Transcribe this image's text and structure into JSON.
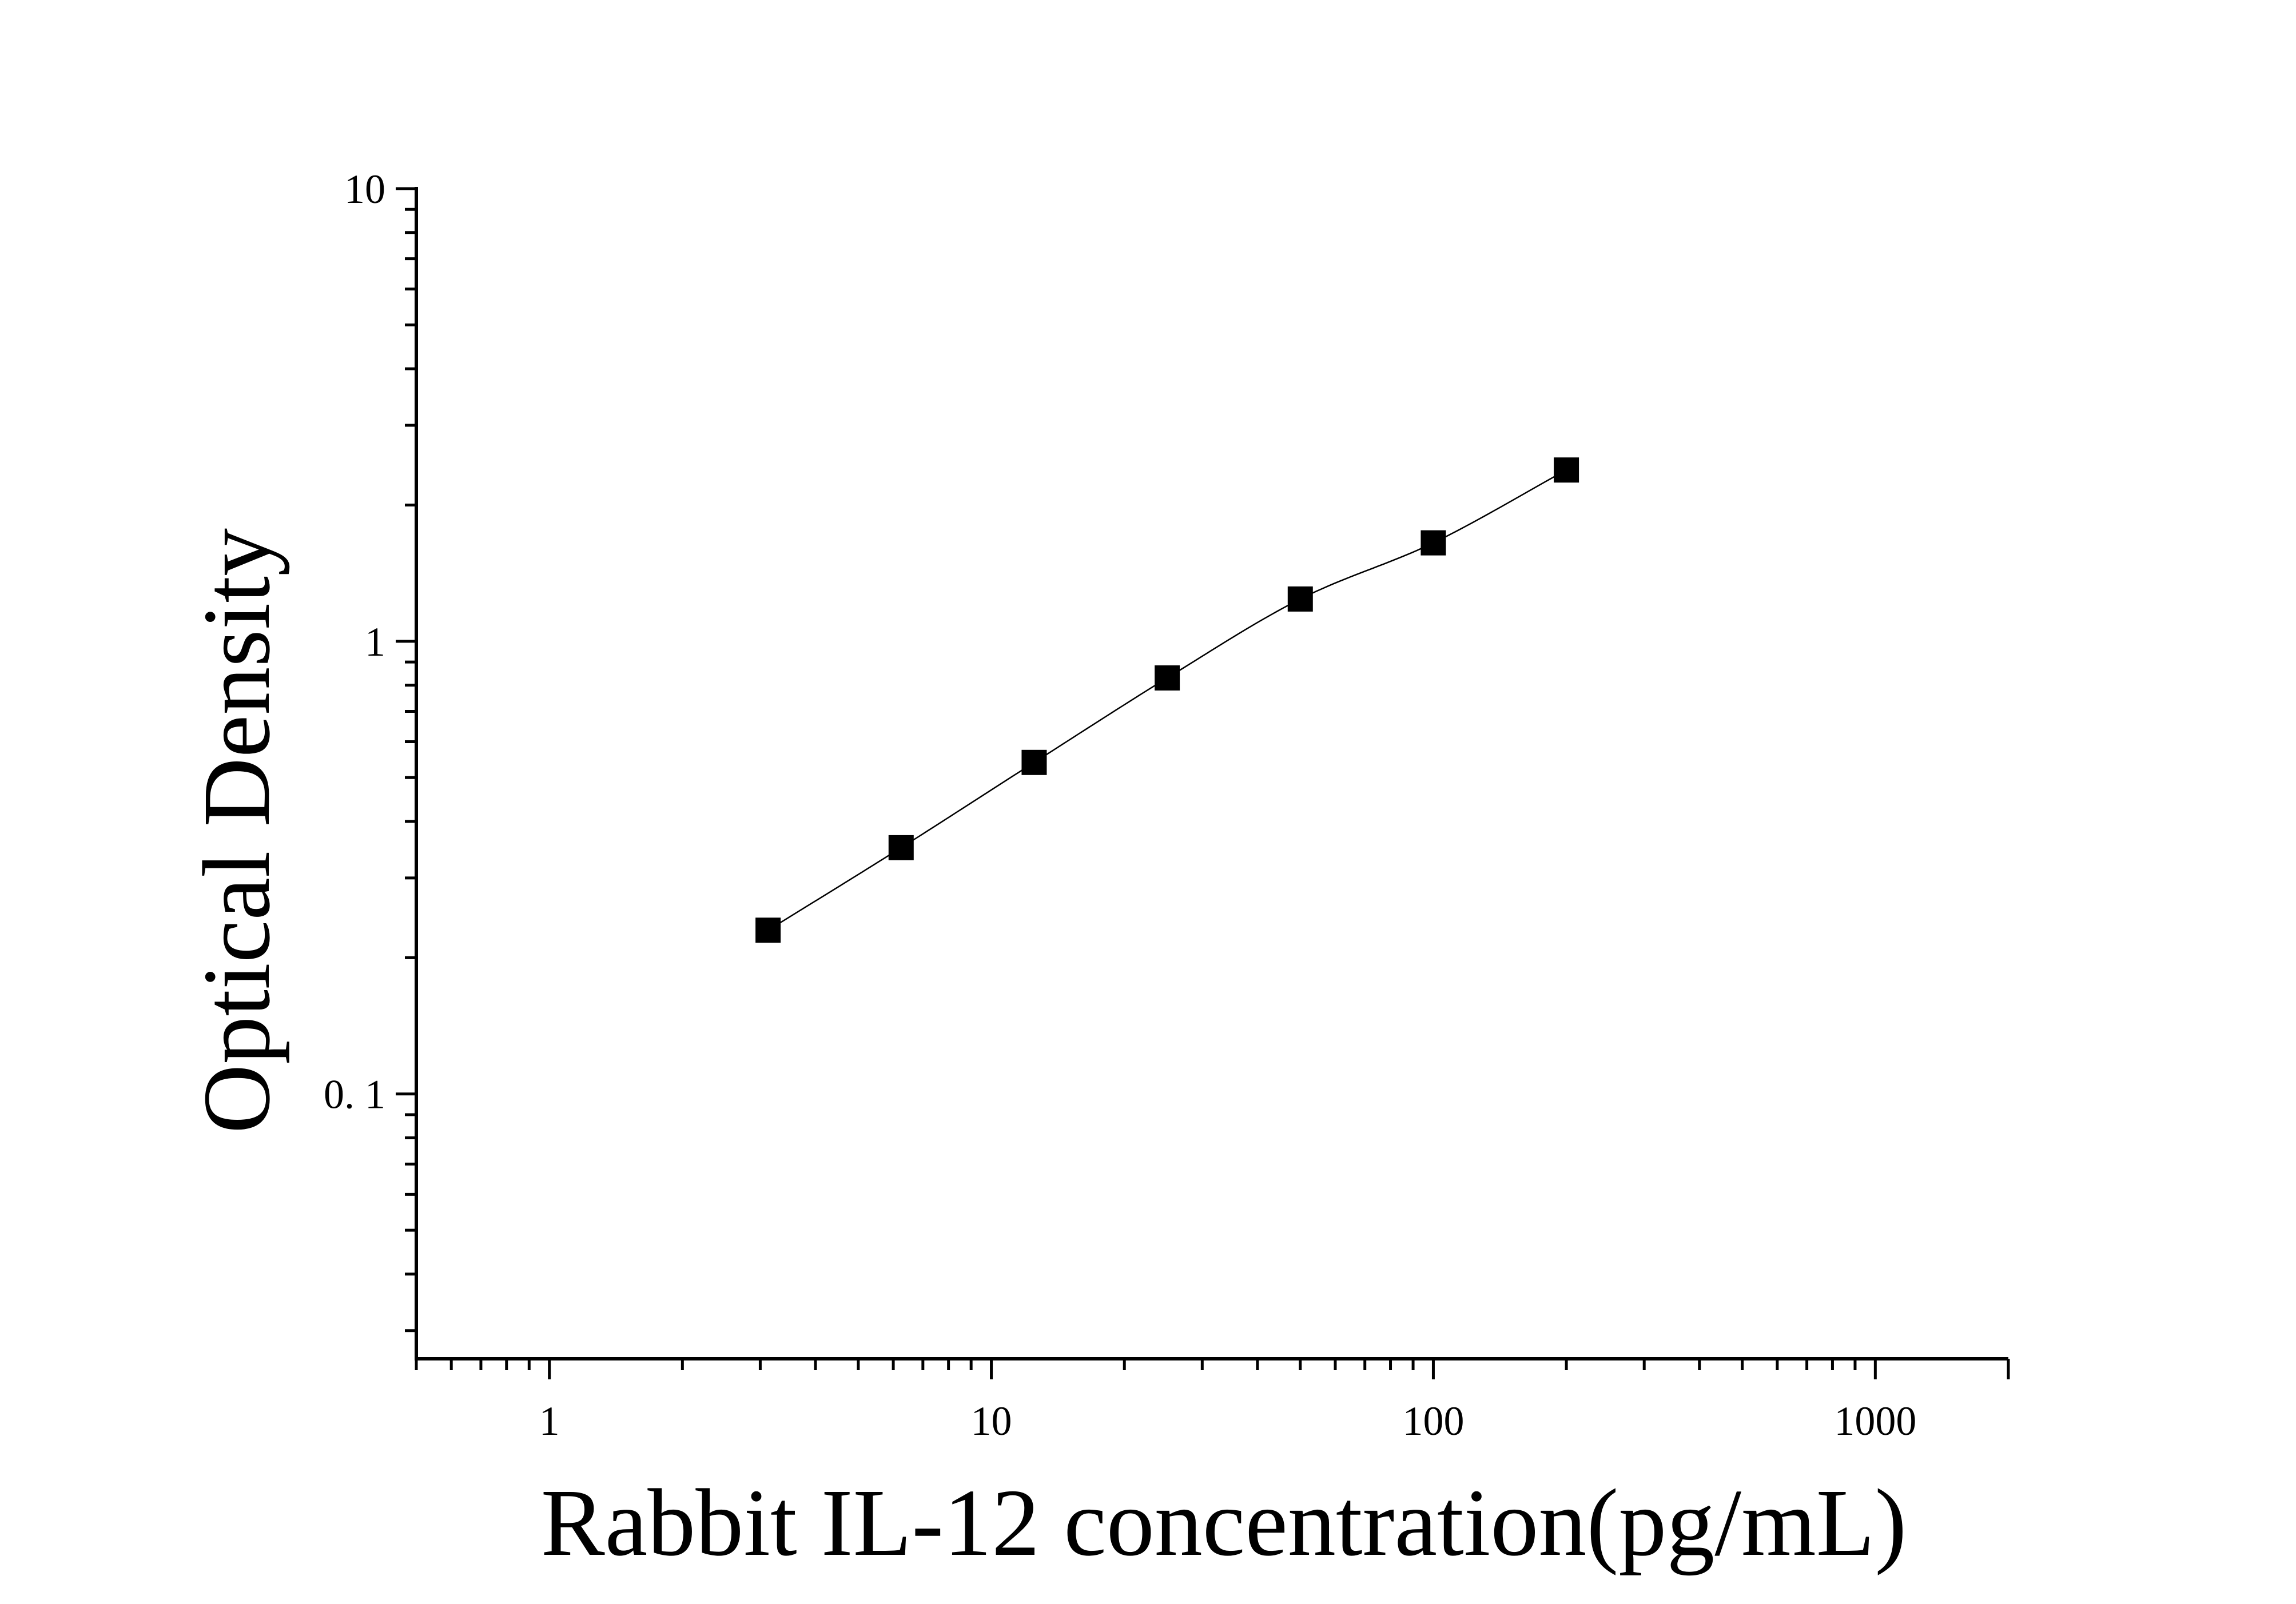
{
  "chart_data": {
    "type": "scatter",
    "xscale": "log",
    "yscale": "log",
    "xlabel": "Rabbit IL-12 concentration(pg/mL)",
    "ylabel": "Optical Density",
    "xlim": [
      0.5,
      2000
    ],
    "ylim": [
      0.026,
      10
    ],
    "x_ticks": [
      {
        "value": 1,
        "label": "1"
      },
      {
        "value": 10,
        "label": "10"
      },
      {
        "value": 100,
        "label": "100"
      },
      {
        "value": 1000,
        "label": "1000"
      }
    ],
    "y_ticks": [
      {
        "value": 0.1,
        "label": "0. 1"
      },
      {
        "value": 1,
        "label": "1"
      },
      {
        "value": 10,
        "label": "10"
      }
    ],
    "series": [
      {
        "x": [
          3.125,
          6.25,
          12.5,
          25,
          50,
          100,
          200
        ],
        "y": [
          0.23,
          0.35,
          0.54,
          0.83,
          1.24,
          1.65,
          2.39
        ],
        "marker": "square",
        "color": "#000000",
        "fit_line": true
      }
    ]
  }
}
